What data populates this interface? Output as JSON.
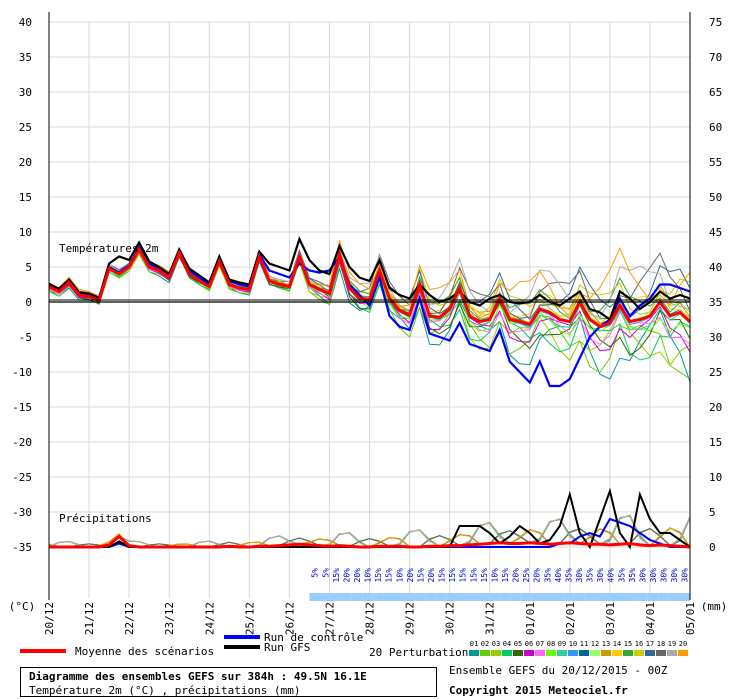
{
  "colors": {
    "mean": "#ff0000",
    "control": "#0000ff",
    "gfs": "#000000",
    "snow": "#99ccff",
    "members": [
      "#009999",
      "#66cc00",
      "#99cc00",
      "#00cc66",
      "#336600",
      "#cc00cc",
      "#ff66ff",
      "#66ff00",
      "#33cc99",
      "#3399ff",
      "#006699",
      "#99ff66",
      "#cc9900",
      "#ffcc00",
      "#33aa33",
      "#cccc00",
      "#336699",
      "#666666",
      "#aaaaaa",
      "#ff9900"
    ]
  },
  "chart_data": {
    "type": "line",
    "title": "Diagramme des ensembles GEFS sur 384h : 49.5N 16.1E",
    "subtitle": "Température 2m (°C) , précipitations (mm)",
    "ylabel_left": "(°C)",
    "ylabel_right": "(mm)",
    "ylim_left": [
      -35,
      40
    ],
    "ylim_right": [
      0,
      75
    ],
    "y_ticks_left": [
      "40",
      "35",
      "30",
      "25",
      "20",
      "15",
      "10",
      "5",
      "0",
      "-5",
      "-10",
      "-15",
      "-20",
      "-25",
      "-30",
      "-35"
    ],
    "y_ticks_right": [
      "75",
      "70",
      "65",
      "60",
      "55",
      "50",
      "45",
      "40",
      "35",
      "30",
      "25",
      "20",
      "15",
      "10",
      "5",
      "0"
    ],
    "x_ticks": [
      "20/12",
      "21/12",
      "22/12",
      "23/12",
      "24/12",
      "25/12",
      "26/12",
      "27/12",
      "28/12",
      "29/12",
      "30/12",
      "31/12",
      "01/01",
      "02/01",
      "03/01",
      "04/01",
      "05/01"
    ],
    "panel_labels": {
      "temperature": "Températures 2m",
      "precipitation": "Précipitations"
    },
    "grid": true,
    "legend": {
      "mean": "Moyenne des scénarios",
      "control": "Run de contrôle",
      "gfs": "Run GFS",
      "perturbations": "20 Perturbations",
      "member_ids": [
        "01",
        "02",
        "03",
        "04",
        "05",
        "06",
        "07",
        "08",
        "09",
        "10",
        "11",
        "12",
        "13",
        "14",
        "15",
        "16",
        "17",
        "18",
        "19",
        "20"
      ]
    },
    "snow_probability": [
      "5%",
      "5%",
      "15%",
      "20%",
      "20%",
      "10%",
      "15%",
      "15%",
      "10%",
      "20%",
      "15%",
      "20%",
      "15%",
      "15%",
      "15%",
      "15%",
      "15%",
      "10%",
      "15%",
      "20%",
      "25%",
      "20%",
      "35%",
      "40%",
      "35%",
      "30%",
      "35%",
      "30%",
      "40%",
      "35%",
      "35%",
      "30%",
      "30%",
      "30%",
      "30%",
      "30%"
    ],
    "x": [
      0,
      6,
      12,
      18,
      24,
      30,
      36,
      42,
      48,
      54,
      60,
      66,
      72,
      78,
      84,
      90,
      96,
      102,
      108,
      114,
      120,
      126,
      132,
      138,
      144,
      150,
      156,
      162,
      168,
      174,
      180,
      186,
      192,
      198,
      204,
      210,
      216,
      222,
      228,
      234,
      240,
      246,
      252,
      258,
      264,
      270,
      276,
      282,
      288,
      294,
      300,
      306,
      312,
      318,
      324,
      330,
      336,
      342,
      348,
      354,
      360,
      366,
      372,
      378,
      384
    ],
    "series": [
      {
        "name": "Moyenne des scénarios",
        "values": [
          2.2,
          1.5,
          2.8,
          1.0,
          0.8,
          0.2,
          4.8,
          4.0,
          5.0,
          7.5,
          5.0,
          4.5,
          3.5,
          7.0,
          4.0,
          3.0,
          2.2,
          5.8,
          2.5,
          2.0,
          1.8,
          6.5,
          3.0,
          2.5,
          2.2,
          6.5,
          2.5,
          1.8,
          1.2,
          6.8,
          2.0,
          0.5,
          0.3,
          4.5,
          0.5,
          -1.2,
          -1.8,
          2.5,
          -2.0,
          -2.2,
          -1.0,
          2.0,
          -2.0,
          -2.8,
          -2.5,
          0.5,
          -2.5,
          -2.8,
          -3.2,
          -1.0,
          -1.5,
          -2.5,
          -2.8,
          0.0,
          -2.5,
          -3.5,
          -3.0,
          -0.5,
          -2.8,
          -2.5,
          -2.0,
          0.0,
          -2.0,
          -1.5,
          -2.8
        ]
      },
      {
        "name": "Run de contrôle",
        "values": [
          2.5,
          1.8,
          3.0,
          1.2,
          1.0,
          0.5,
          5.0,
          4.2,
          5.2,
          7.8,
          5.5,
          4.8,
          3.8,
          7.2,
          4.5,
          3.5,
          2.5,
          6.0,
          3.0,
          2.5,
          2.2,
          6.8,
          4.5,
          4.0,
          3.5,
          5.5,
          4.5,
          4.2,
          4.5,
          6.5,
          2.5,
          1.0,
          -0.5,
          3.5,
          -2.0,
          -3.5,
          -4.0,
          0.5,
          -4.5,
          -5.0,
          -5.5,
          -3.0,
          -6.0,
          -6.5,
          -7.0,
          -4.0,
          -8.5,
          -10.0,
          -11.5,
          -8.5,
          -12.0,
          -12.0,
          -11.0,
          -8.0,
          -5.0,
          -3.5,
          -2.5,
          0.5,
          -2.0,
          -0.5,
          0.5,
          2.5,
          2.5,
          2.0,
          1.5
        ]
      },
      {
        "name": "Run GFS",
        "values": [
          2.6,
          1.9,
          3.2,
          1.4,
          1.2,
          0.6,
          5.5,
          6.5,
          6.0,
          8.5,
          5.8,
          5.0,
          4.0,
          7.5,
          4.8,
          3.8,
          2.8,
          6.5,
          3.2,
          2.8,
          2.5,
          7.2,
          5.5,
          5.0,
          4.5,
          9.0,
          6.0,
          4.5,
          4.0,
          8.0,
          5.0,
          3.5,
          3.0,
          6.0,
          2.0,
          1.0,
          0.5,
          2.5,
          1.0,
          0.0,
          0.5,
          1.5,
          0.0,
          -0.5,
          0.5,
          1.0,
          0.0,
          -0.2,
          0.0,
          1.0,
          0.0,
          -0.5,
          0.5,
          1.5,
          -1.0,
          -1.5,
          -2.5,
          1.5,
          0.5,
          -1.0,
          0.0,
          1.5,
          0.5,
          1.0,
          0.5
        ]
      }
    ],
    "precip_series": [
      {
        "name": "Moyenne des scénarios",
        "values": [
          0,
          0,
          0,
          0,
          0,
          0,
          0.3,
          1.5,
          0.2,
          0,
          0,
          0,
          0,
          0,
          0,
          0,
          0,
          0,
          0.1,
          0,
          0,
          0.1,
          0.1,
          0.2,
          0.3,
          0.4,
          0.3,
          0.2,
          0.1,
          0.2,
          0.1,
          0,
          0,
          0.1,
          0.1,
          0.1,
          0,
          0,
          0.1,
          0.1,
          0.2,
          0.2,
          0.3,
          0.4,
          0.5,
          0.6,
          0.5,
          0.5,
          0.6,
          0.5,
          0.4,
          0.5,
          0.6,
          0.5,
          0.4,
          0.4,
          0.3,
          0.4,
          0.5,
          0.3,
          0.2,
          0.3,
          0.2,
          0.1,
          0
        ]
      },
      {
        "name": "Run de contrôle",
        "values": [
          0,
          0,
          0,
          0,
          0,
          0,
          0,
          0.5,
          0,
          0,
          0,
          0,
          0,
          0,
          0,
          0,
          0,
          0,
          0,
          0,
          0,
          0,
          0,
          0,
          0,
          0,
          0,
          0,
          0,
          0,
          0,
          0,
          0,
          0,
          0,
          0,
          0,
          0,
          0,
          0,
          0,
          0,
          0,
          0,
          0,
          0,
          0,
          0,
          0,
          0,
          0,
          0.5,
          0.5,
          1.5,
          2.0,
          1.5,
          4.0,
          3.5,
          3.0,
          2.0,
          1.0,
          0.5,
          0,
          0,
          0
        ]
      },
      {
        "name": "Run GFS",
        "values": [
          0,
          0,
          0,
          0,
          0,
          0,
          0,
          0.8,
          0,
          0,
          0,
          0,
          0,
          0,
          0,
          0,
          0,
          0,
          0,
          0,
          0,
          0,
          0,
          0,
          0,
          0,
          0,
          0,
          0,
          0,
          0,
          0,
          0,
          0,
          0,
          0,
          0,
          0,
          0,
          0,
          0,
          3.0,
          3.0,
          3.0,
          2.0,
          0.5,
          1.5,
          3.0,
          2.0,
          0.5,
          1.0,
          3.0,
          7.5,
          2.0,
          0,
          4.0,
          8.0,
          2.0,
          0,
          7.5,
          4.0,
          2.0,
          2.0,
          1.0,
          0
        ]
      }
    ]
  },
  "footer": {
    "title": "Diagramme des ensembles GEFS sur 384h : 49.5N 16.1E",
    "subtitle": "Température 2m (°C) , précipitations (mm)",
    "ensemble": "Ensemble GEFS du 20/12/2015 - 00Z",
    "copyright": "Copyright 2015 Meteociel.fr"
  }
}
